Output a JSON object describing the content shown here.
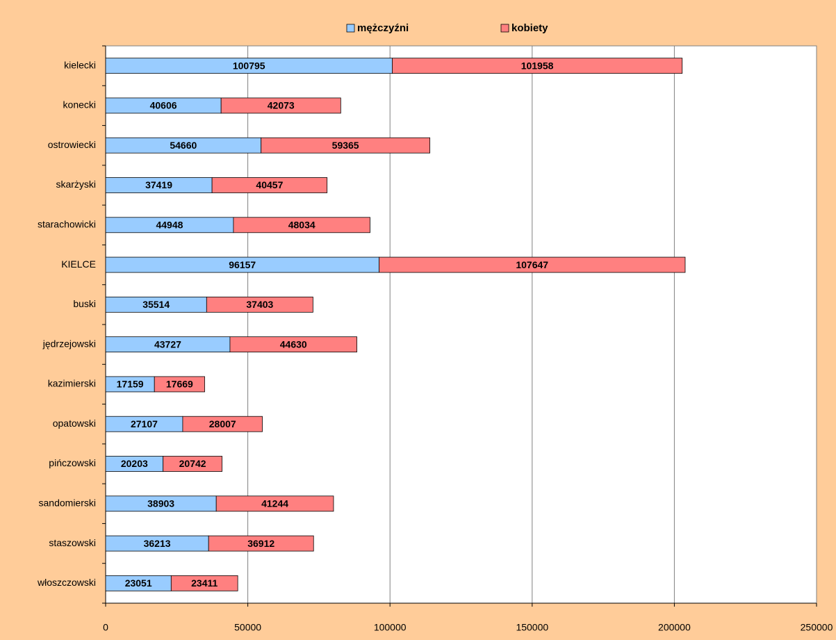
{
  "chart_data": {
    "type": "stacked-bar-horizontal",
    "categories": [
      "kielecki",
      "konecki",
      "ostrowiecki",
      "skarżyski",
      "starachowicki",
      "KIELCE",
      "buski",
      "jędrzejowski",
      "kazimierski",
      "opatowski",
      "pińczowski",
      "sandomierski",
      "staszowski",
      "włoszczowski"
    ],
    "series": [
      {
        "name": "mężczyźni",
        "color": "#99ccff",
        "values": [
          100795,
          40606,
          54660,
          37419,
          44948,
          96157,
          35514,
          43727,
          17159,
          27107,
          20203,
          38903,
          36213,
          23051
        ]
      },
      {
        "name": "kobiety",
        "color": "#ff8080",
        "values": [
          101958,
          42073,
          59365,
          40457,
          48034,
          107647,
          37403,
          44630,
          17669,
          28007,
          20742,
          41244,
          36912,
          23411
        ]
      }
    ],
    "xlim": [
      0,
      250000
    ],
    "xticks": [
      0,
      50000,
      100000,
      150000,
      200000,
      250000
    ],
    "grid": true,
    "legend": "top",
    "data_labels": true
  }
}
